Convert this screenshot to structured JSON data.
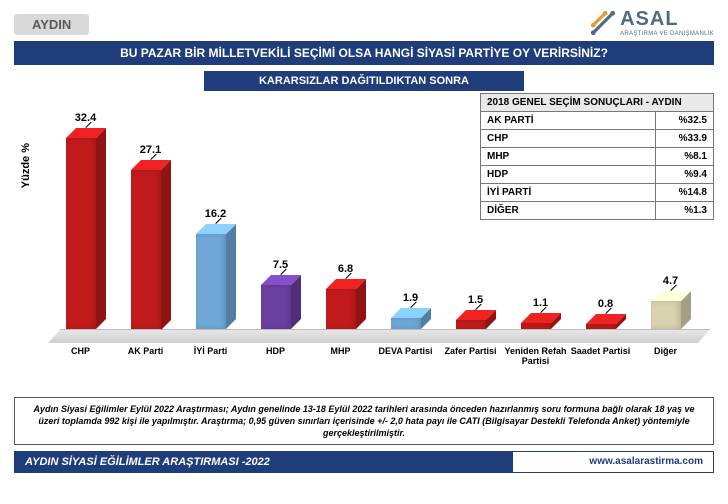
{
  "header": {
    "badge": "AYDIN",
    "logo_name": "ASAL",
    "logo_sub": "ARAŞTIRMA VE DANIŞMANLIK"
  },
  "title": "BU PAZAR BİR MİLLETVEKİLİ SEÇİMİ OLSA HANGİ SİYASİ PARTİYE OY VERİRSİNİZ?",
  "subtitle": "KARARSIZLAR DAĞITILDIKTAN SONRA",
  "chart": {
    "type": "bar",
    "ylabel": "Yüzde  %",
    "ylim_max": 35,
    "floor_color": "#d9d9d9",
    "categories": [
      "CHP",
      "AK Parti",
      "İYİ Parti",
      "HDP",
      "MHP",
      "DEVA Partisi",
      "Zafer Partisi",
      "Yeniden Refah Partisi",
      "Saadet Partisi",
      "Diğer"
    ],
    "values": [
      32.4,
      27.1,
      16.2,
      7.5,
      6.8,
      1.9,
      1.5,
      1.1,
      0.8,
      4.7
    ],
    "bar_colors": [
      "#c11b1b",
      "#c11b1b",
      "#6fa8d8",
      "#6b3fa0",
      "#c11b1b",
      "#6fa8d8",
      "#c11b1b",
      "#c11b1b",
      "#c11b1b",
      "#d9d2b0"
    ]
  },
  "results2018": {
    "title": "2018 GENEL SEÇİM SONUÇLARI - AYDIN",
    "rows": [
      {
        "party": "AK PARTİ",
        "pct": "%32.5"
      },
      {
        "party": "CHP",
        "pct": "%33.9"
      },
      {
        "party": "MHP",
        "pct": "%8.1"
      },
      {
        "party": "HDP",
        "pct": "%9.4"
      },
      {
        "party": "İYİ PARTİ",
        "pct": "%14.8"
      },
      {
        "party": "DİĞER",
        "pct": "%1.3"
      }
    ]
  },
  "footnote": "Aydın Siyasi Eğilimler Eylül 2022 Araştırması; Aydın genelinde 13-18 Eylül 2022 tarihleri arasında önceden hazırlanmış soru formuna bağlı olarak 18 yaş ve üzeri toplamda 992 kişi ile yapılmıştır. Araştırma; 0,95 güven sınırları içerisinde +/- 2,0 hata payı ile CATI (Bilgisayar Destekli Telefonda Anket) yöntemiyle gerçekleştirilmiştir.",
  "footer": {
    "left": "AYDIN SİYASİ EĞİLİMLER ARAŞTIRMASI -2022",
    "right": "www.asalarastirma.com"
  },
  "colors": {
    "navy": "#1f3d7a",
    "badge_bg": "#d9d9d9",
    "text": "#000000"
  }
}
